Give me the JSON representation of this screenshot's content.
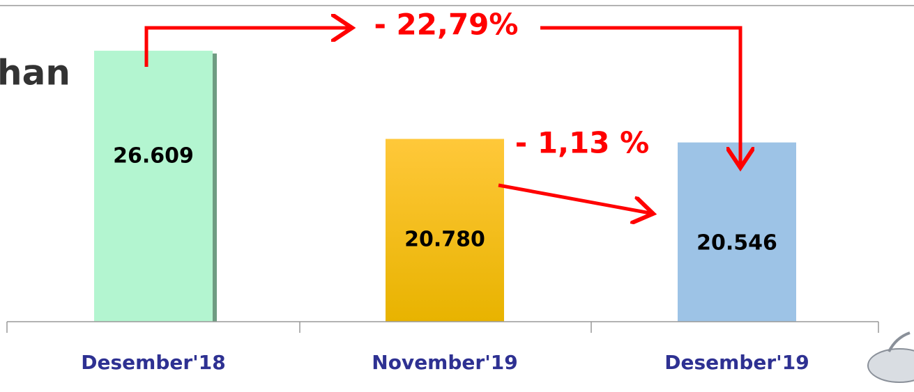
{
  "chart_data": {
    "type": "bar",
    "title": "han",
    "categories": [
      "Desember'18",
      "November'19",
      "Desember'19"
    ],
    "values": [
      26609,
      20780,
      20546
    ],
    "value_labels": [
      "26.609",
      "20.780",
      "20.546"
    ],
    "colors": [
      "#b3f5d0",
      "#f8c20a",
      "#9dc3e6"
    ],
    "ylim": [
      8700,
      29500
    ],
    "annotations": [
      "- 22,79%",
      "- 1,13 %"
    ]
  }
}
